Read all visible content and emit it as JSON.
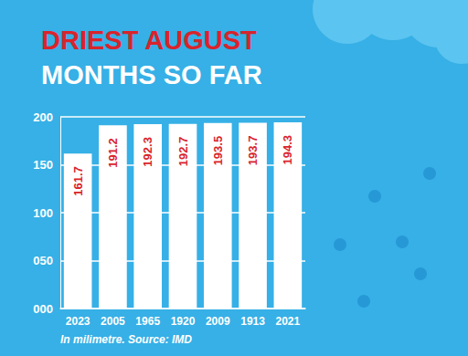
{
  "chart_data": {
    "type": "bar",
    "title": "DRIEST AUGUST",
    "subtitle": "MONTHS SO FAR",
    "annotations": [
      "In milimetre. Source: IMD"
    ],
    "categories": [
      "2023",
      "2005",
      "1965",
      "1920",
      "2009",
      "1913",
      "2021"
    ],
    "values": [
      161.7,
      191.2,
      192.3,
      192.7,
      193.5,
      193.7,
      194.3
    ],
    "color": "#ffffff",
    "ylim": [
      0,
      200
    ],
    "yticks": [
      {
        "value": 0,
        "label": "000"
      },
      {
        "value": 50,
        "label": "050"
      },
      100,
      150,
      200
    ],
    "grid": true,
    "data_labels": true
  }
}
